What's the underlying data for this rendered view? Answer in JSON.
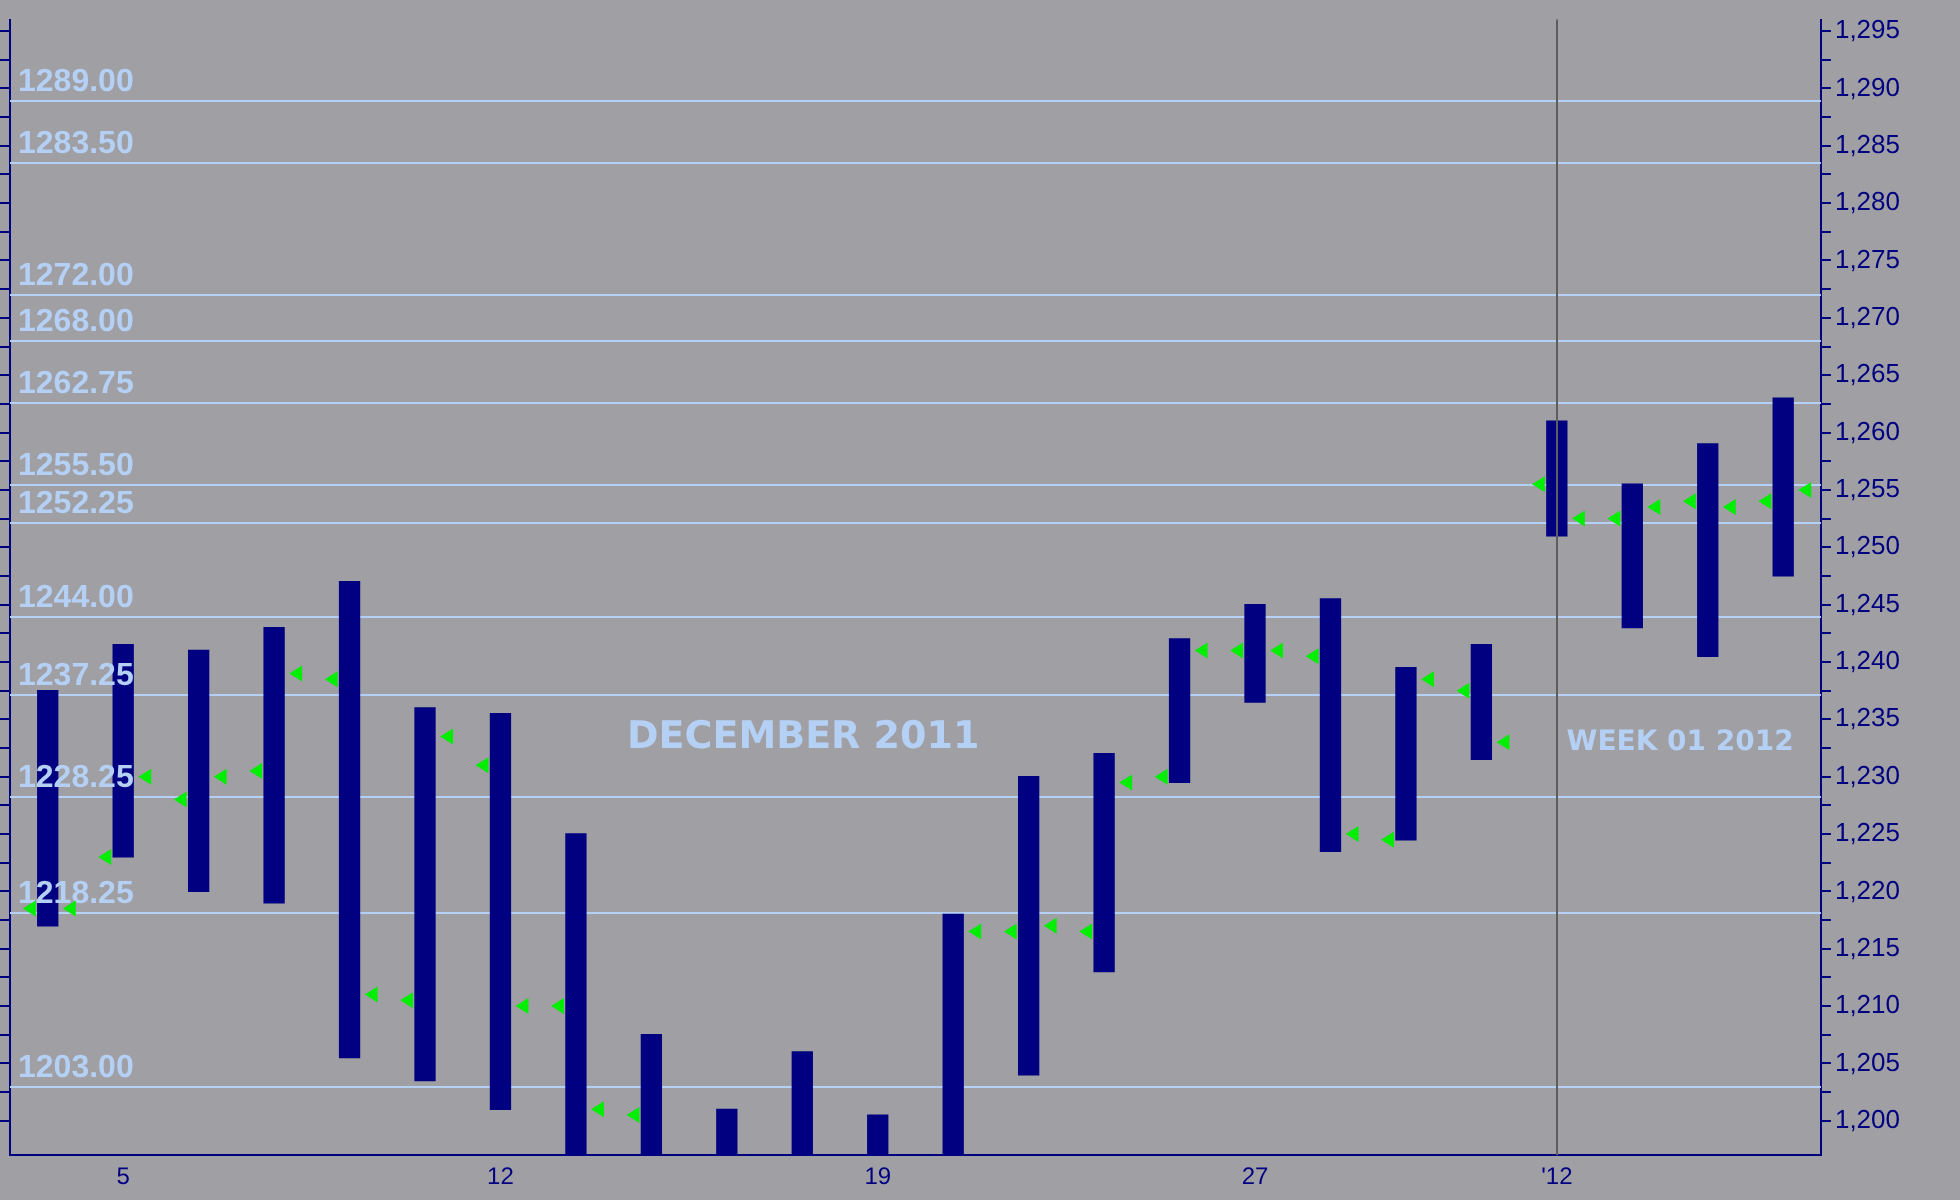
{
  "chart_data": {
    "type": "bar",
    "categories": [
      null,
      "5",
      null,
      null,
      null,
      null,
      "12",
      null,
      null,
      null,
      null,
      "19",
      null,
      null,
      null,
      null,
      "27",
      null,
      null,
      null,
      "'12",
      null,
      null,
      null
    ],
    "series": [
      {
        "color": "#000080",
        "base": [
          1217,
          1223,
          1220,
          1219,
          1205.5,
          1203.5,
          1201,
          1197,
          1197,
          1197,
          1197,
          1197,
          1197,
          1204,
          1213,
          1229.5,
          1236.5,
          1223.5,
          1224.5,
          1231.5,
          1251,
          1243,
          1240.5,
          1247.5
        ],
        "values": [
          20.5,
          18.5,
          21,
          24,
          41.5,
          32.5,
          34.5,
          28,
          10.5,
          4,
          9,
          3.5,
          21,
          26,
          19,
          12.5,
          8.5,
          22,
          15,
          10,
          10,
          12.5,
          18.5,
          15.5
        ]
      },
      {
        "type": "scatter",
        "color": "#00ee00",
        "values": [
          1218.5,
          1223,
          1228,
          1230.5,
          1238.5,
          1210.5,
          1231,
          1210,
          1200.5,
          null,
          null,
          null,
          null,
          1216.5,
          1216.5,
          1230,
          1241,
          1240.5,
          1224.5,
          1237.5,
          1255.5,
          1252.5,
          1254,
          1254
        ]
      },
      {
        "type": "scatter",
        "color": "#00ee00",
        "values": [
          1218.5,
          1230,
          1230,
          1239,
          1211,
          1233.5,
          1210,
          1201,
          null,
          null,
          null,
          null,
          1216.5,
          1217,
          1229.5,
          1241,
          1241,
          1225,
          1238.5,
          1233,
          1252.5,
          1253.5,
          1253.5,
          1255
        ]
      }
    ],
    "marker": "triangle",
    "ylim": [
      1197,
      1296
    ],
    "yticks": [
      {
        "value": 1200,
        "label": "1,200"
      },
      {
        "value": 1202.5,
        "label": null
      },
      {
        "value": 1205,
        "label": "1,205"
      },
      {
        "value": 1207.5,
        "label": null
      },
      {
        "value": 1210,
        "label": "1,210"
      },
      {
        "value": 1212.5,
        "label": null
      },
      {
        "value": 1215,
        "label": "1,215"
      },
      {
        "value": 1217.5,
        "label": null
      },
      {
        "value": 1220,
        "label": "1,220"
      },
      {
        "value": 1222.5,
        "label": null
      },
      {
        "value": 1225,
        "label": "1,225"
      },
      {
        "value": 1227.5,
        "label": null
      },
      {
        "value": 1230,
        "label": "1,230"
      },
      {
        "value": 1232.5,
        "label": null
      },
      {
        "value": 1235,
        "label": "1,235"
      },
      {
        "value": 1237.5,
        "label": null
      },
      {
        "value": 1240,
        "label": "1,240"
      },
      {
        "value": 1242.5,
        "label": null
      },
      {
        "value": 1245,
        "label": "1,245"
      },
      {
        "value": 1247.5,
        "label": null
      },
      {
        "value": 1250,
        "label": "1,250"
      },
      {
        "value": 1252.5,
        "label": null
      },
      {
        "value": 1255,
        "label": "1,255"
      },
      {
        "value": 1257.5,
        "label": null
      },
      {
        "value": 1260,
        "label": "1,260"
      },
      {
        "value": 1262.5,
        "label": null
      },
      {
        "value": 1265,
        "label": "1,265"
      },
      {
        "value": 1267.5,
        "label": null
      },
      {
        "value": 1270,
        "label": "1,270"
      },
      {
        "value": 1272.5,
        "label": null
      },
      {
        "value": 1275,
        "label": "1,275"
      },
      {
        "value": 1277.5,
        "label": null
      },
      {
        "value": 1280,
        "label": "1,280"
      },
      {
        "value": 1282.5,
        "label": null
      },
      {
        "value": 1285,
        "label": "1,285"
      },
      {
        "value": 1287.5,
        "label": null
      },
      {
        "value": 1290,
        "label": "1,290"
      },
      {
        "value": 1292.5,
        "label": null
      },
      {
        "value": 1295,
        "label": "1,295"
      }
    ],
    "ref_lines": [
      {
        "axis": "y",
        "value": 1289,
        "label": "1289.00",
        "color": "#b4d0f4"
      },
      {
        "axis": "y",
        "value": 1283.5,
        "label": "1283.50",
        "color": "#b4d0f4"
      },
      {
        "axis": "y",
        "value": 1272,
        "label": "1272.00",
        "color": "#b4d0f4"
      },
      {
        "axis": "y",
        "value": 1268,
        "label": "1268.00",
        "color": "#b4d0f4"
      },
      {
        "axis": "y",
        "value": 1262.75,
        "label": "1262.75",
        "color": "#b4d0f4"
      },
      {
        "axis": "y",
        "value": 1255.5,
        "label": "1255.50",
        "color": "#b4d0f4"
      },
      {
        "axis": "y",
        "value": 1252.25,
        "label": "1252.25",
        "color": "#b4d0f4"
      },
      {
        "axis": "y",
        "value": 1244,
        "label": "1244.00",
        "color": "#b4d0f4"
      },
      {
        "axis": "y",
        "value": 1237.25,
        "label": "1237.25",
        "color": "#b4d0f4"
      },
      {
        "axis": "y",
        "value": 1228.25,
        "label": "1228.25",
        "color": "#b4d0f4"
      },
      {
        "axis": "y",
        "value": 1218.25,
        "label": "1218.25",
        "color": "#b4d0f4"
      },
      {
        "axis": "y",
        "value": 1203,
        "label": "1203.00",
        "color": "#b4d0f4"
      },
      {
        "axis": "x",
        "value": "'12",
        "color": "#5e5e5e"
      }
    ],
    "annotations": [
      "DECEMBER 2011",
      "WEEK 01 2012"
    ]
  }
}
